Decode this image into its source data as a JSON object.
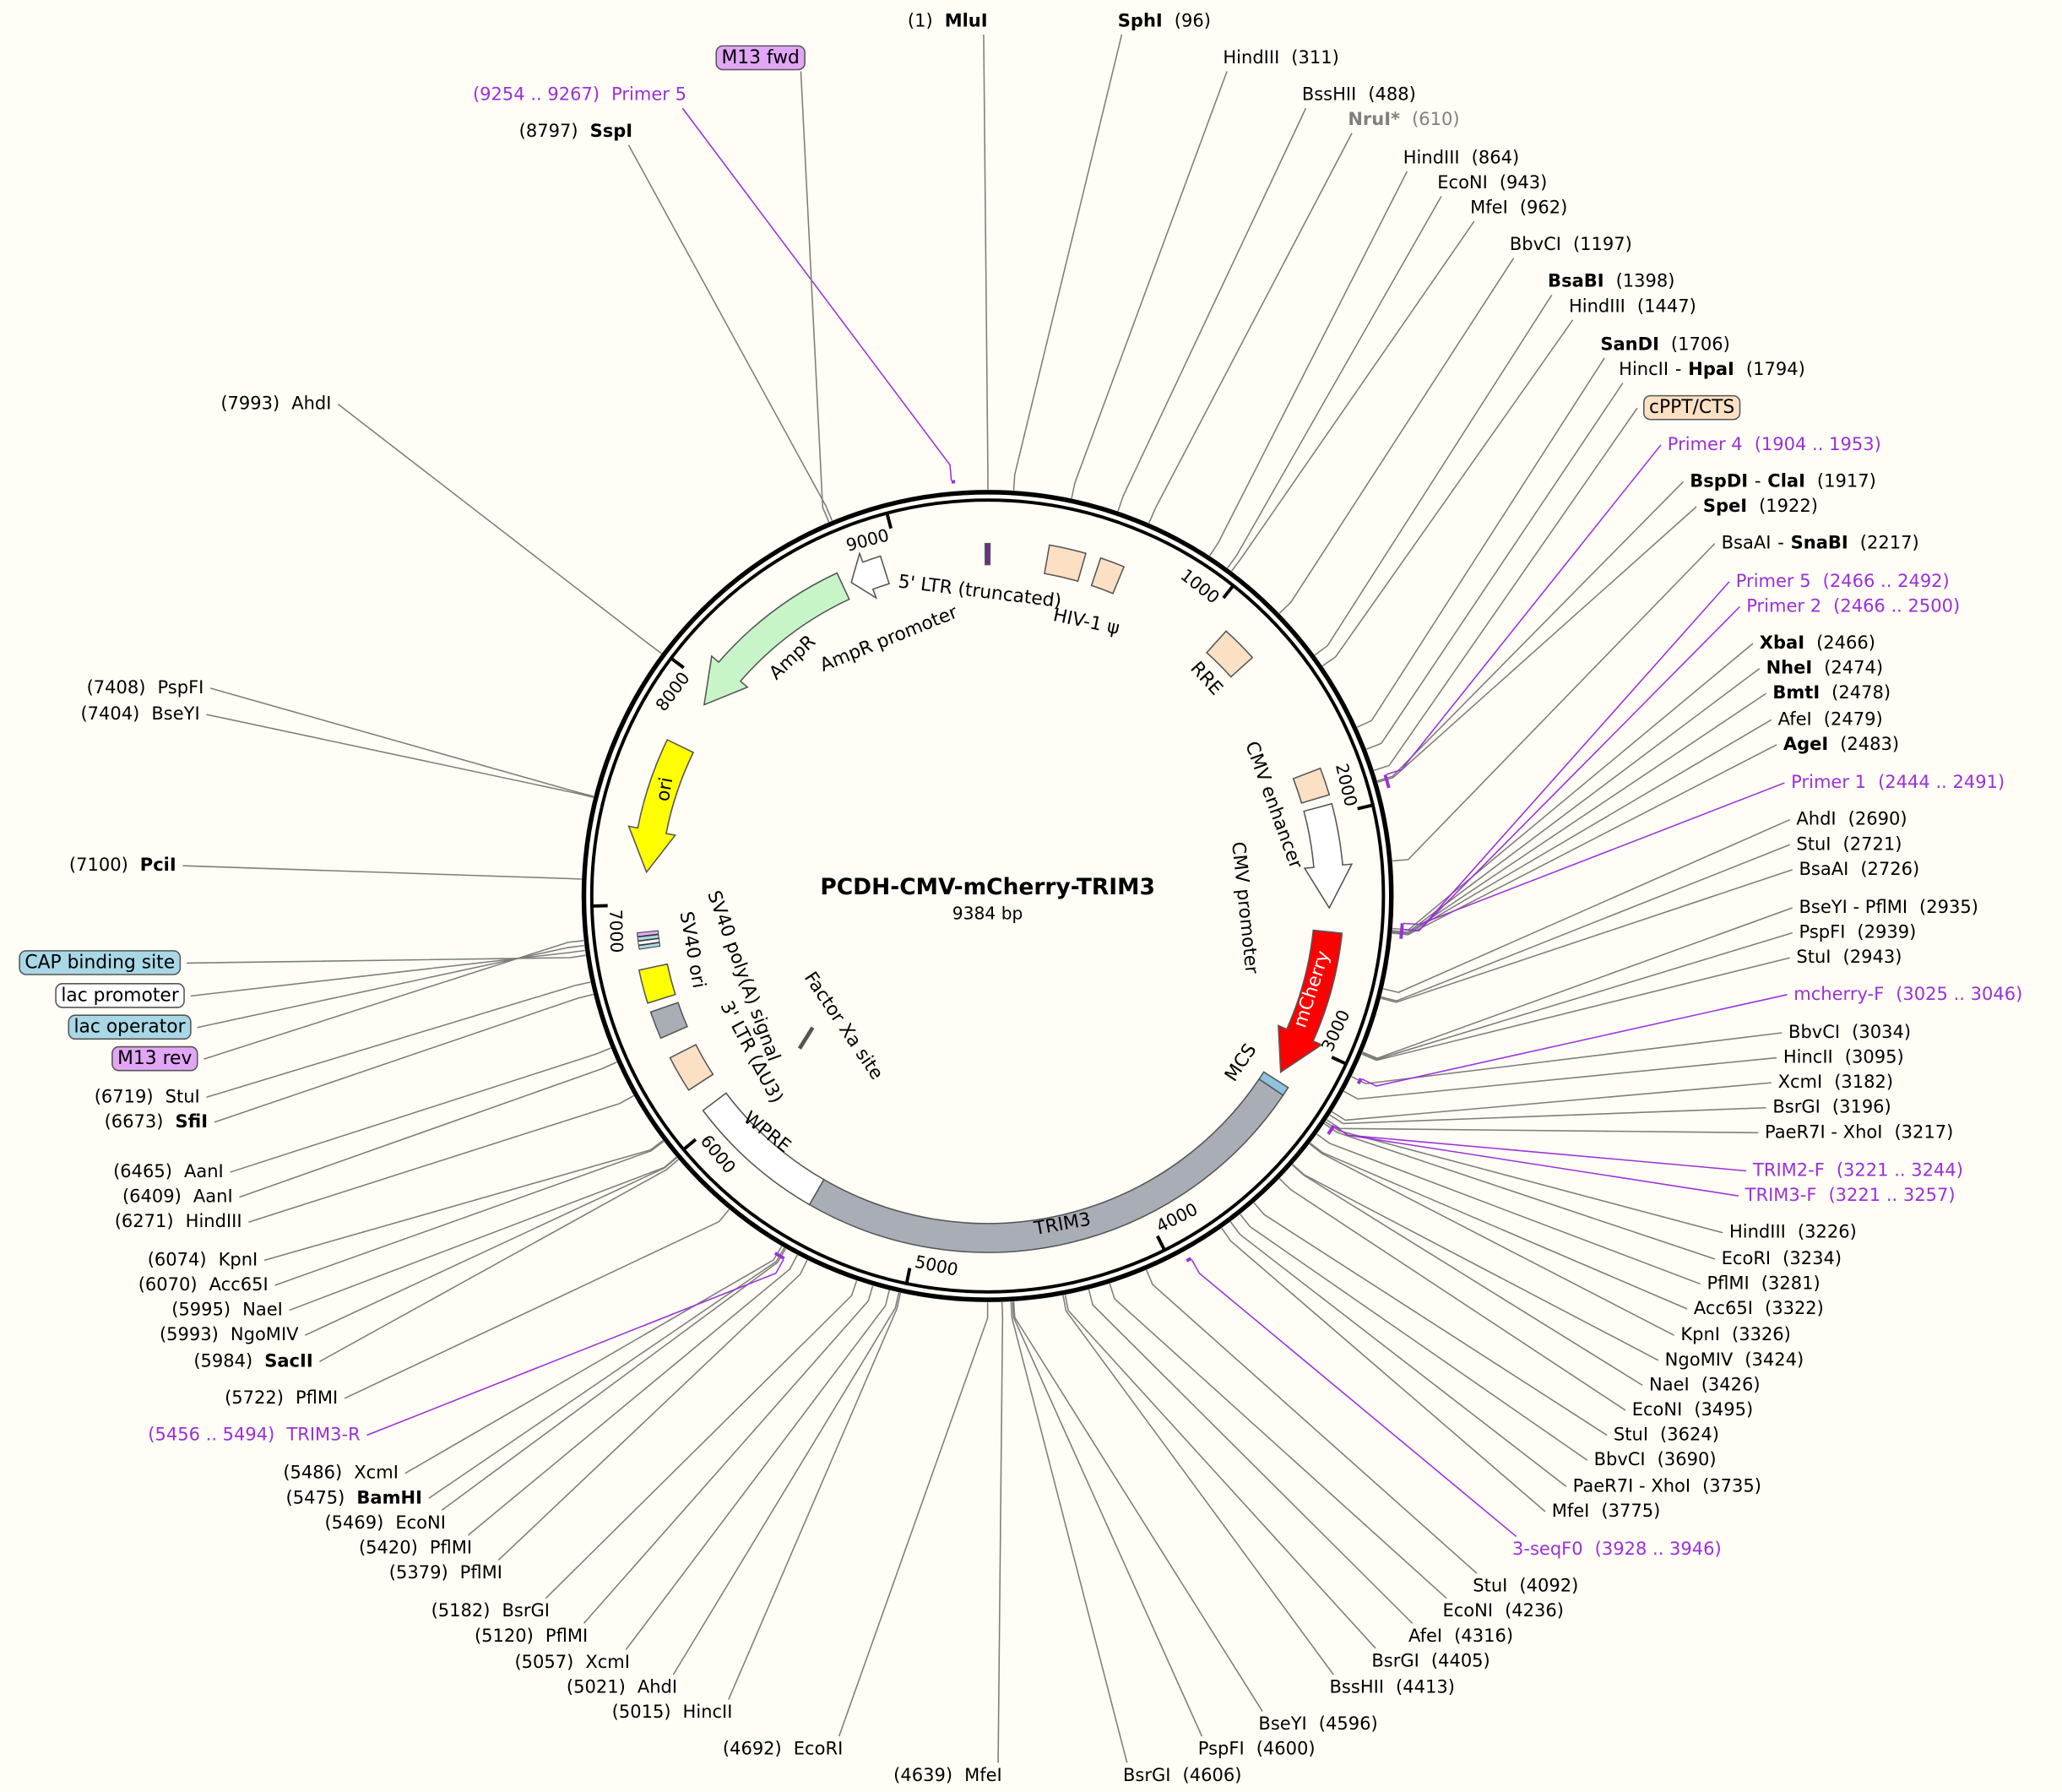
{
  "title": "PCDH-CMV-mCherry-TRIM3",
  "length": {
    "value": 9384,
    "label": "9384 bp"
  },
  "ticks": [
    1000,
    2000,
    3000,
    4000,
    5000,
    6000,
    7000,
    8000,
    9000
  ],
  "primer_color": "#9b30d9",
  "features": [
    {
      "label": "5' LTR (truncated)",
      "color": "#6a2c91"
    },
    {
      "label": "HIV-1 ψ",
      "color": "#fbe0c4"
    },
    {
      "label": "RRE",
      "color": "#fbe0c4"
    },
    {
      "label": "CMV enhancer",
      "color": "#fbe0c4"
    },
    {
      "label": "CMV promoter",
      "color": "#ffffff"
    },
    {
      "label": "mCherry",
      "color": "#ff0000"
    },
    {
      "label": "MCS",
      "color": "#8ec3e0"
    },
    {
      "label": "TRIM3",
      "color": "#a9adb5"
    },
    {
      "label": "WPRE",
      "color": "#ffffff"
    },
    {
      "label": "3' LTR (ΔU3)",
      "color": "#fbe0c4"
    },
    {
      "label": "SV40 ori",
      "color": "#a9adb5"
    },
    {
      "label": "SV40 poly(A) signal",
      "color": "#ffff00"
    },
    {
      "label": "Factor Xa site",
      "color": "#555555"
    },
    {
      "label": "ori",
      "color": "#ffff00"
    },
    {
      "label": "AmpR",
      "color": "#c8f5c8"
    },
    {
      "label": "AmpR promoter",
      "color": "#ffffff"
    }
  ],
  "tagged_features": [
    {
      "label": "cPPT/CTS",
      "color": "#fbe0c4"
    },
    {
      "label": "M13 fwd",
      "color": "#e2a6f6"
    },
    {
      "label": "CAP binding site",
      "color": "#a8d8e6"
    },
    {
      "label": "lac promoter",
      "color": "#ffffff"
    },
    {
      "label": "lac operator",
      "color": "#a8d8e6"
    },
    {
      "label": "M13 rev",
      "color": "#e2a6f6"
    }
  ],
  "primers": [
    {
      "name": "Primer 4",
      "start": 1904,
      "end": 1953,
      "range": "(1904 .. 1953)"
    },
    {
      "name": "Primer 5",
      "start": 2466,
      "end": 2492,
      "range": "(2466 .. 2492)"
    },
    {
      "name": "Primer 2",
      "start": 2466,
      "end": 2500,
      "range": "(2466 .. 2500)"
    },
    {
      "name": "Primer 1",
      "start": 2444,
      "end": 2491,
      "range": "(2444 .. 2491)"
    },
    {
      "name": "mcherry-F",
      "start": 3025,
      "end": 3046,
      "range": "(3025 .. 3046)"
    },
    {
      "name": "TRIM2-F",
      "start": 3221,
      "end": 3244,
      "range": "(3221 .. 3244)"
    },
    {
      "name": "TRIM3-F",
      "start": 3221,
      "end": 3257,
      "range": "(3221 .. 3257)"
    },
    {
      "name": "3-seqF0",
      "start": 3928,
      "end": 3946,
      "range": "(3928 .. 3946)"
    },
    {
      "name": "TRIM3-R",
      "start": 5456,
      "end": 5494,
      "range": "(5456 .. 5494)"
    },
    {
      "name": "Primer 5",
      "start": 9254,
      "end": 9267,
      "range": "(9254 .. 9267)"
    }
  ],
  "sites": [
    {
      "name": "MluI",
      "bold": true,
      "pos": 1,
      "pos_label": "(1)"
    },
    {
      "name": "SphI",
      "bold": true,
      "pos": 96,
      "pos_label": "(96)"
    },
    {
      "name": "HindIII",
      "pos": 311,
      "pos_label": "(311)"
    },
    {
      "name": "BssHII",
      "pos": 488,
      "pos_label": "(488)"
    },
    {
      "name": "NruI*",
      "bold": true,
      "color": "#808080",
      "pos": 610,
      "pos_label": "(610)"
    },
    {
      "name": "HindIII",
      "pos": 864,
      "pos_label": "(864)"
    },
    {
      "name": "EcoNI",
      "pos": 943,
      "pos_label": "(943)"
    },
    {
      "name": "MfeI",
      "pos": 962,
      "pos_label": "(962)"
    },
    {
      "name": "BbvCI",
      "pos": 1197,
      "pos_label": "(1197)"
    },
    {
      "name": "BsaBI",
      "bold": true,
      "pos": 1398,
      "pos_label": "(1398)"
    },
    {
      "name": "HindIII",
      "pos": 1447,
      "pos_label": "(1447)"
    },
    {
      "name": "SanDI",
      "bold": true,
      "pos": 1706,
      "pos_label": "(1706)"
    },
    {
      "name": [
        "HincII",
        "-",
        "HpaI"
      ],
      "bold": [
        false,
        false,
        true
      ],
      "pos": 1794,
      "pos_label": "(1794)"
    },
    {
      "name": [
        "BspDI",
        "-",
        "ClaI"
      ],
      "bold": [
        true,
        false,
        true
      ],
      "pos": 1917,
      "pos_label": "(1917)"
    },
    {
      "name": "SpeI",
      "bold": true,
      "pos": 1922,
      "pos_label": "(1922)"
    },
    {
      "name": [
        "BsaAI",
        "-",
        "SnaBI"
      ],
      "bold": [
        false,
        false,
        true
      ],
      "pos": 2217,
      "pos_label": "(2217)"
    },
    {
      "name": "XbaI",
      "bold": true,
      "pos": 2466,
      "pos_label": "(2466)"
    },
    {
      "name": "NheI",
      "bold": true,
      "pos": 2474,
      "pos_label": "(2474)"
    },
    {
      "name": "BmtI",
      "bold": true,
      "pos": 2478,
      "pos_label": "(2478)"
    },
    {
      "name": "AfeI",
      "pos": 2479,
      "pos_label": "(2479)"
    },
    {
      "name": "AgeI",
      "bold": true,
      "pos": 2483,
      "pos_label": "(2483)"
    },
    {
      "name": "AhdI",
      "pos": 2690,
      "pos_label": "(2690)"
    },
    {
      "name": "StuI",
      "pos": 2721,
      "pos_label": "(2721)"
    },
    {
      "name": "BsaAI",
      "pos": 2726,
      "pos_label": "(2726)"
    },
    {
      "name": "BseYI - PflMI",
      "pos": 2935,
      "pos_label": "(2935)"
    },
    {
      "name": "PspFI",
      "pos": 2939,
      "pos_label": "(2939)"
    },
    {
      "name": "StuI",
      "pos": 2943,
      "pos_label": "(2943)"
    },
    {
      "name": "BbvCI",
      "pos": 3034,
      "pos_label": "(3034)"
    },
    {
      "name": "HincII",
      "pos": 3095,
      "pos_label": "(3095)"
    },
    {
      "name": "XcmI",
      "pos": 3182,
      "pos_label": "(3182)"
    },
    {
      "name": "BsrGI",
      "pos": 3196,
      "pos_label": "(3196)"
    },
    {
      "name": "PaeR7I - XhoI",
      "pos": 3217,
      "pos_label": "(3217)"
    },
    {
      "name": "HindIII",
      "pos": 3226,
      "pos_label": "(3226)"
    },
    {
      "name": "EcoRI",
      "pos": 3234,
      "pos_label": "(3234)"
    },
    {
      "name": "PflMI",
      "pos": 3281,
      "pos_label": "(3281)"
    },
    {
      "name": "Acc65I",
      "pos": 3322,
      "pos_label": "(3322)"
    },
    {
      "name": "KpnI",
      "pos": 3326,
      "pos_label": "(3326)"
    },
    {
      "name": "NgoMIV",
      "pos": 3424,
      "pos_label": "(3424)"
    },
    {
      "name": "NaeI",
      "pos": 3426,
      "pos_label": "(3426)"
    },
    {
      "name": "EcoNI",
      "pos": 3495,
      "pos_label": "(3495)"
    },
    {
      "name": "StuI",
      "pos": 3624,
      "pos_label": "(3624)"
    },
    {
      "name": "BbvCI",
      "pos": 3690,
      "pos_label": "(3690)"
    },
    {
      "name": "PaeR7I - XhoI",
      "pos": 3735,
      "pos_label": "(3735)"
    },
    {
      "name": "MfeI",
      "pos": 3775,
      "pos_label": "(3775)"
    },
    {
      "name": "StuI",
      "pos": 4092,
      "pos_label": "(4092)"
    },
    {
      "name": "EcoNI",
      "pos": 4236,
      "pos_label": "(4236)"
    },
    {
      "name": "AfeI",
      "pos": 4316,
      "pos_label": "(4316)"
    },
    {
      "name": "BsrGI",
      "pos": 4405,
      "pos_label": "(4405)"
    },
    {
      "name": "BssHII",
      "pos": 4413,
      "pos_label": "(4413)"
    },
    {
      "name": "BseYI",
      "pos": 4596,
      "pos_label": "(4596)"
    },
    {
      "name": "PspFI",
      "pos": 4600,
      "pos_label": "(4600)"
    },
    {
      "name": "BsrGI",
      "pos": 4606,
      "pos_label": "(4606)"
    },
    {
      "name": "MfeI",
      "pos": 4639,
      "pos_label": "(4639)"
    },
    {
      "name": "EcoRI",
      "pos": 4692,
      "pos_label": "(4692)"
    },
    {
      "name": "HincII",
      "pos": 5015,
      "pos_label": "(5015)"
    },
    {
      "name": "AhdI",
      "pos": 5021,
      "pos_label": "(5021)"
    },
    {
      "name": "XcmI",
      "pos": 5057,
      "pos_label": "(5057)"
    },
    {
      "name": "PflMI",
      "pos": 5120,
      "pos_label": "(5120)"
    },
    {
      "name": "BsrGI",
      "pos": 5182,
      "pos_label": "(5182)"
    },
    {
      "name": "PflMI",
      "pos": 5379,
      "pos_label": "(5379)"
    },
    {
      "name": "PflMI",
      "pos": 5420,
      "pos_label": "(5420)"
    },
    {
      "name": "EcoNI",
      "pos": 5469,
      "pos_label": "(5469)"
    },
    {
      "name": "BamHI",
      "bold": true,
      "pos": 5475,
      "pos_label": "(5475)"
    },
    {
      "name": "XcmI",
      "pos": 5486,
      "pos_label": "(5486)"
    },
    {
      "name": "PflMI",
      "pos": 5722,
      "pos_label": "(5722)"
    },
    {
      "name": "SacII",
      "bold": true,
      "pos": 5984,
      "pos_label": "(5984)"
    },
    {
      "name": "NgoMIV",
      "pos": 5993,
      "pos_label": "(5993)"
    },
    {
      "name": "NaeI",
      "pos": 5995,
      "pos_label": "(5995)"
    },
    {
      "name": "Acc65I",
      "pos": 6070,
      "pos_label": "(6070)"
    },
    {
      "name": "KpnI",
      "pos": 6074,
      "pos_label": "(6074)"
    },
    {
      "name": "HindIII",
      "pos": 6271,
      "pos_label": "(6271)"
    },
    {
      "name": "AanI",
      "pos": 6409,
      "pos_label": "(6409)"
    },
    {
      "name": "AanI",
      "pos": 6465,
      "pos_label": "(6465)"
    },
    {
      "name": "SfiI",
      "bold": true,
      "pos": 6673,
      "pos_label": "(6673)"
    },
    {
      "name": "StuI",
      "pos": 6719,
      "pos_label": "(6719)"
    },
    {
      "name": "PciI",
      "bold": true,
      "pos": 7100,
      "pos_label": "(7100)"
    },
    {
      "name": "BseYI",
      "pos": 7404,
      "pos_label": "(7404)"
    },
    {
      "name": "PspFI",
      "pos": 7408,
      "pos_label": "(7408)"
    },
    {
      "name": "AhdI",
      "pos": 7993,
      "pos_label": "(7993)"
    },
    {
      "name": "SspI",
      "bold": true,
      "pos": 8797,
      "pos_label": "(8797)"
    }
  ]
}
